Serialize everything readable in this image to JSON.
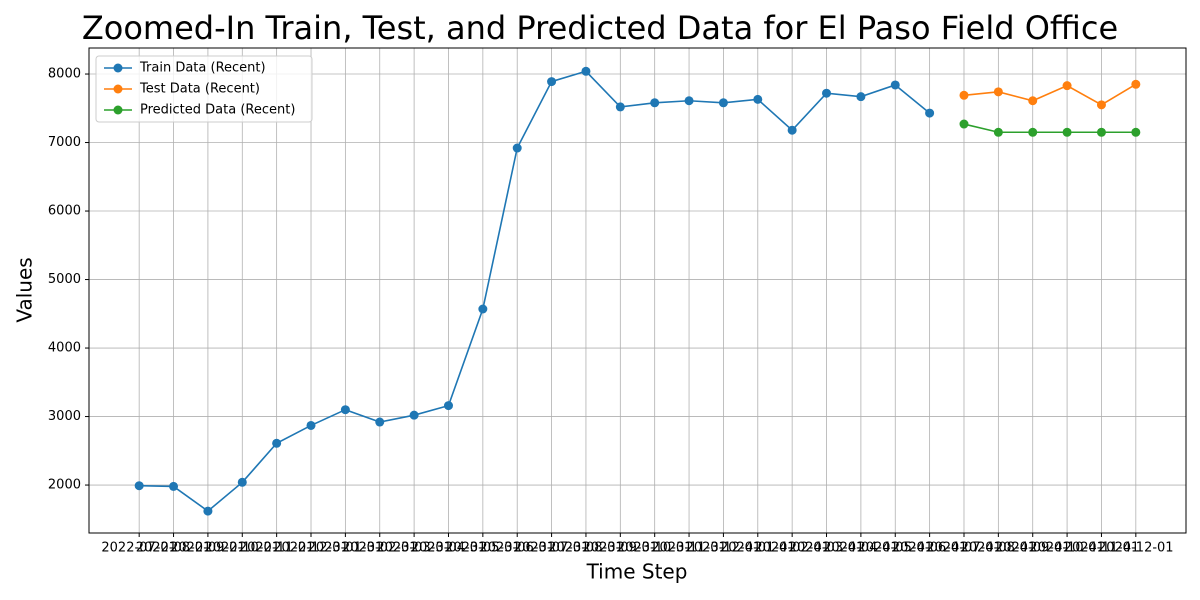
{
  "chart_data": {
    "type": "line",
    "title": "Zoomed-In Train, Test, and Predicted Data for El Paso Field Office",
    "xlabel": "Time Step",
    "ylabel": "Values",
    "categories": [
      "2022-07-01",
      "2022-08-01",
      "2022-09-01",
      "2022-10-01",
      "2022-11-01",
      "2022-12-01",
      "2023-01-01",
      "2023-02-01",
      "2023-03-01",
      "2023-04-01",
      "2023-05-01",
      "2023-06-01",
      "2023-07-01",
      "2023-08-01",
      "2023-09-01",
      "2023-10-01",
      "2023-11-01",
      "2023-12-01",
      "2024-01-01",
      "2024-02-01",
      "2024-03-01",
      "2024-04-01",
      "2024-05-01",
      "2024-06-01",
      "2024-07-01",
      "2024-08-01",
      "2024-09-01",
      "2024-10-01",
      "2024-11-01",
      "2024-12-01"
    ],
    "series": [
      {
        "name": "Train Data (Recent)",
        "color": "#1f77b4",
        "values": [
          1990,
          1980,
          1620,
          2040,
          2610,
          2870,
          3100,
          2920,
          3020,
          3160,
          4570,
          6920,
          7890,
          8040,
          7520,
          7580,
          7610,
          7580,
          7630,
          7180,
          7720,
          7670,
          7840,
          7430,
          null,
          null,
          null,
          null,
          null,
          null
        ]
      },
      {
        "name": "Test Data (Recent)",
        "color": "#ff7f0e",
        "values": [
          null,
          null,
          null,
          null,
          null,
          null,
          null,
          null,
          null,
          null,
          null,
          null,
          null,
          null,
          null,
          null,
          null,
          null,
          null,
          null,
          null,
          null,
          null,
          null,
          7690,
          7740,
          7610,
          7830,
          7550,
          7850
        ]
      },
      {
        "name": "Predicted Data (Recent)",
        "color": "#2ca02c",
        "values": [
          null,
          null,
          null,
          null,
          null,
          null,
          null,
          null,
          null,
          null,
          null,
          null,
          null,
          null,
          null,
          null,
          null,
          null,
          null,
          null,
          null,
          null,
          null,
          null,
          7270,
          7150,
          7150,
          7150,
          7150,
          7150
        ]
      }
    ],
    "ylim": [
      1300,
      8380
    ],
    "yticks": [
      2000,
      3000,
      4000,
      5000,
      6000,
      7000,
      8000
    ],
    "grid": true,
    "legend": "upper left"
  }
}
